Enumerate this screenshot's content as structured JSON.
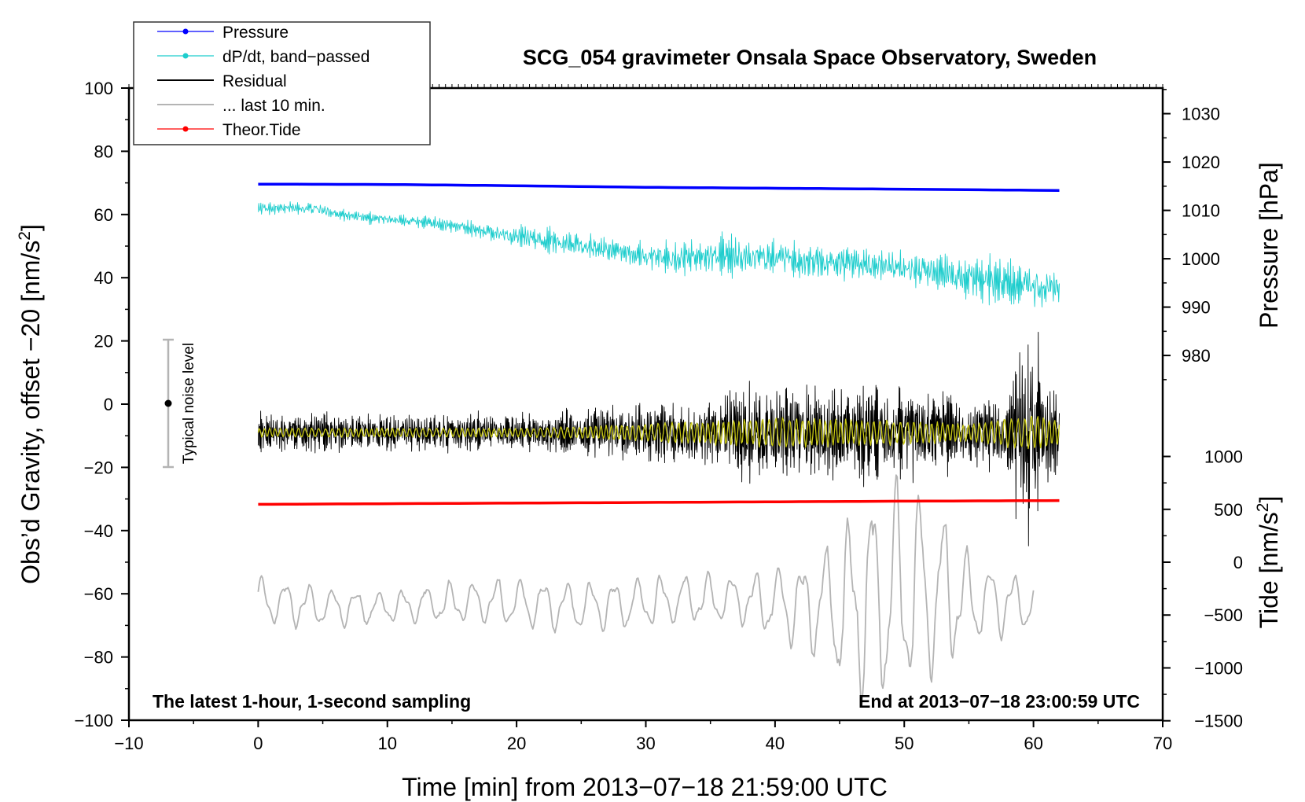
{
  "chart_data": {
    "type": "line",
    "title": "SCG_054 gravimeter Onsala Space Observatory, Sweden",
    "xlabel": "Time [min] from 2013−07−18 21:59:00 UTC",
    "ylabel": "Obs’d Gravity, offset −20 [nm/s²]",
    "ylabel_parts": {
      "main": "Obs’d Gravity, offset −20 [nm/s",
      "sup": "2",
      "end": "]"
    },
    "xlim": [
      -10,
      70
    ],
    "ylim": [
      -100,
      100
    ],
    "x_ticks": [
      -10,
      0,
      10,
      20,
      30,
      40,
      50,
      60,
      70
    ],
    "x_tick_labels": [
      "−10",
      "0",
      "10",
      "20",
      "30",
      "40",
      "50",
      "60",
      "70"
    ],
    "y_ticks": [
      -100,
      -80,
      -60,
      -40,
      -20,
      0,
      20,
      40,
      60,
      80,
      100
    ],
    "y_tick_labels": [
      "−100",
      "−80",
      "−60",
      "−40",
      "−20",
      "0",
      "20",
      "40",
      "60",
      "80",
      "100"
    ],
    "pressure_axis": {
      "label": "Pressure [hPa]",
      "ticks": [
        980,
        990,
        1000,
        1010,
        1020,
        1030
      ],
      "tick_labels": [
        "980",
        "990",
        "1000",
        "1010",
        "1020",
        "1030"
      ],
      "gravity_equivalent": {
        "hpa_ref": 1000,
        "gravity_ref": 46,
        "gravity_per_hpa": 1.53
      }
    },
    "tide_axis": {
      "label_parts": {
        "main": "Tide [nm/s",
        "sup": "2",
        "end": "]"
      },
      "ticks": [
        -1500,
        -1000,
        -500,
        0,
        500,
        1000
      ],
      "tick_labels": [
        "−1500",
        "−1000",
        "−500",
        "0",
        "500",
        "1000"
      ],
      "gravity_equivalent": {
        "tide_ref": 0,
        "gravity_ref": -50,
        "gravity_per_unit": 0.03345
      }
    },
    "legend": {
      "position": "top-left",
      "entries": [
        {
          "label": "Pressure",
          "color": "#0000ff",
          "marker": true
        },
        {
          "label": "dP/dt, band−passed",
          "color": "#1ecdcd",
          "marker": true
        },
        {
          "label": "Residual",
          "color": "#000000",
          "marker": false
        },
        {
          "label": "... last 10 min.",
          "color": "#b4b4b4",
          "marker": false
        },
        {
          "label": "Theor.Tide",
          "color": "#ff0000",
          "marker": true
        }
      ]
    },
    "noise_bar": {
      "label": "Typical noise level",
      "x": -7,
      "center": 0,
      "half_range": 20
    },
    "annotations": {
      "left": "The latest 1-hour, 1-second sampling",
      "right": "End at 2013−07−18 23:00:59 UTC"
    },
    "series": [
      {
        "name": "Pressure",
        "color": "#0000ff",
        "x": [
          0,
          10,
          20,
          30,
          40,
          50,
          62
        ],
        "values": [
          69.6,
          69.5,
          69.1,
          68.6,
          68.3,
          68.0,
          67.6
        ]
      },
      {
        "name": "dP/dt, band−passed",
        "color": "#1ecdcd",
        "x": [
          0,
          4,
          8,
          12,
          16,
          20,
          24,
          28,
          32,
          36,
          40,
          44,
          48,
          52,
          56,
          60,
          62
        ],
        "values": [
          62,
          62,
          59,
          58,
          56,
          53,
          51,
          48,
          46,
          47,
          46,
          45,
          44,
          42,
          39,
          37,
          36
        ],
        "amplitude": [
          1.5,
          2,
          1.5,
          1.5,
          2,
          3,
          3.5,
          3.5,
          4,
          5,
          5,
          5,
          5,
          5,
          6,
          7,
          6
        ]
      },
      {
        "name": "Residual",
        "color": "#000000",
        "x": [
          0,
          5,
          10,
          15,
          20,
          25,
          30,
          35,
          38,
          42,
          46,
          50,
          55,
          58,
          59,
          60,
          61,
          62
        ],
        "values": [
          -9,
          -9,
          -9,
          -9,
          -9,
          -9,
          -9,
          -9,
          -9,
          -9,
          -9,
          -9,
          -9,
          -9,
          -9,
          -9,
          -9,
          -9
        ],
        "amplitude": [
          5,
          5,
          5,
          5,
          5,
          6,
          8,
          9,
          13,
          13,
          11,
          13,
          9,
          11,
          28,
          28,
          15,
          10
        ]
      },
      {
        "name": "Residual (smoothed)",
        "color": "#c8c814",
        "x": [
          0,
          20,
          25,
          30,
          35,
          40,
          50,
          55,
          58,
          60,
          62
        ],
        "values": [
          -9,
          -9,
          -9,
          -9,
          -9,
          -9,
          -9,
          -9,
          -9,
          -9,
          -9
        ],
        "amplitude": [
          1.5,
          1.5,
          2,
          3,
          4,
          5,
          4,
          3,
          5,
          6,
          4
        ]
      },
      {
        "name": "... last 10 min.",
        "color": "#b4b4b4",
        "x": [
          0,
          10,
          20,
          30,
          38,
          40,
          43,
          46,
          48,
          50,
          52,
          55,
          58,
          60
        ],
        "values": [
          -63,
          -64,
          -63,
          -63,
          -62,
          -62,
          -62,
          -62,
          -62,
          -62,
          -62,
          -62,
          -62,
          -62
        ],
        "amplitude": [
          8,
          5,
          8,
          8,
          8,
          12,
          16,
          30,
          35,
          35,
          30,
          15,
          10,
          8
        ]
      },
      {
        "name": "Theor.Tide",
        "color": "#ff0000",
        "x": [
          0,
          10,
          20,
          30,
          40,
          50,
          62
        ],
        "values": [
          -31.7,
          -31.5,
          -31.3,
          -31.1,
          -30.9,
          -30.7,
          -30.5
        ]
      }
    ]
  }
}
